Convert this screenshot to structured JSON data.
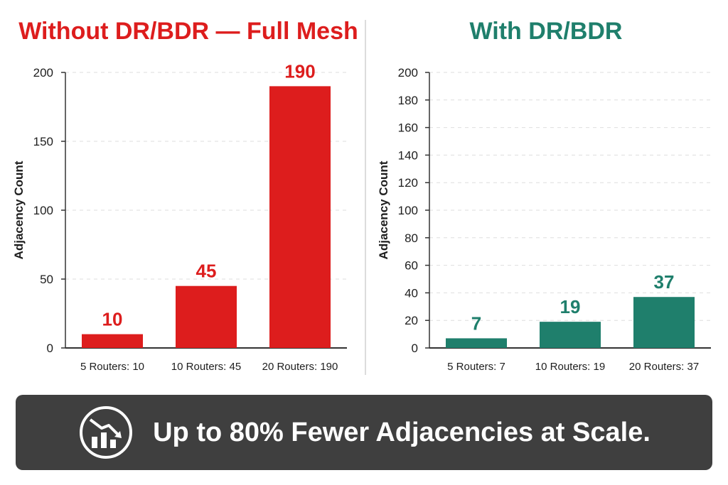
{
  "chart_data": [
    {
      "type": "bar",
      "title": "Without DR/BDR — Full Mesh",
      "ylabel": "Adjacency Count",
      "categories": [
        "5 Routers: 10",
        "10 Routers: 45",
        "20 Routers: 190"
      ],
      "values": [
        10,
        45,
        190
      ],
      "ylim": [
        0,
        200
      ],
      "yticks": [
        0,
        50,
        100,
        150,
        200
      ],
      "grid": true,
      "color": "#dd1d1d"
    },
    {
      "type": "bar",
      "title": "With DR/BDR",
      "ylabel": "Adjacency Count",
      "categories": [
        "5 Routers: 7",
        "10 Routers: 19",
        "20 Routers: 37"
      ],
      "values": [
        7,
        19,
        37
      ],
      "ylim": [
        0,
        200
      ],
      "yticks": [
        0,
        20,
        40,
        60,
        80,
        100,
        120,
        140,
        160,
        180,
        200
      ],
      "grid": true,
      "color": "#1f7f6c"
    }
  ],
  "banner": {
    "text": "Up to 80% Fewer Adjacencies at Scale.",
    "icon": "chart-down-icon"
  }
}
